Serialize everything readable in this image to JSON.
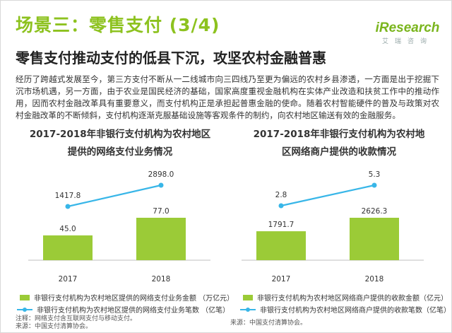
{
  "header": {
    "title": "场景三：零售支付 (3/4)",
    "subtitle": "零售支付推动支付的低县下沉，攻坚农村金融普惠"
  },
  "logo": {
    "main": "iResearch",
    "sub": "艾瑞咨询"
  },
  "paragraph": "经历了跨越式发展至今，第三方支付不断从一二线城市向三四线乃至更为偏远的农村乡县渗透，一方面是出于挖掘下沉市场机遇，另一方面，由于农业是国民经济的基础，国家高度重视金融机构在实体产业改造和扶贫工作中的推动作用，因而农村金融改革具有重要意义，而支付机构正是承担起普惠金融的使命。随着农村智能硬件的普及与政策对农村金融改革的不断倾斜，支付机构逐渐克服基础设施等客观条件的制约，向农村地区输送有效的金融服务。",
  "colors": {
    "title_green": "#8dc21f",
    "bar_green": "#9bcb37",
    "line_blue": "#38b6e8"
  },
  "chart_data": [
    {
      "type": "bar",
      "title_line1": "2017-2018年非银行支付机构为农村地区",
      "title_line2": "提供的网络支付业务情况",
      "categories": [
        "2017",
        "2018"
      ],
      "series": [
        {
          "name": "非银行支付机构为农村地区提供的网络支付业务金额 （万亿元）",
          "type": "bar",
          "values": [
            45.0,
            77.0
          ],
          "labels": [
            "45.0",
            "77.0"
          ]
        },
        {
          "name": "非银行支付机构为农村地区提供的网络支付业务笔数 （亿笔）",
          "type": "line",
          "values": [
            1417.8,
            2898.0
          ],
          "labels": [
            "1417.8",
            "2898.0"
          ]
        }
      ],
      "note_line1": "注释：网络支付含互联网支付与移动支付。",
      "note_line2": "来源：中国支付清算协会。"
    },
    {
      "type": "bar",
      "title_line1": "2017-2018年非银行支付机构为农村地",
      "title_line2": "区网络商户提供的收款情况",
      "categories": [
        "2017",
        "2018"
      ],
      "series": [
        {
          "name": "非银行支付机构为农村地区网络商户提供的收款金额（亿元）",
          "type": "bar",
          "values": [
            1791.7,
            2626.3
          ],
          "labels": [
            "1791.7",
            "2626.3"
          ]
        },
        {
          "name": "非银行支付机构为农村地区网络商户提供的收款笔数（亿笔）",
          "type": "line",
          "values": [
            2.8,
            5.3
          ],
          "labels": [
            "2.8",
            "5.3"
          ]
        }
      ],
      "note_line1": "来源：中国支付清算协会。"
    }
  ]
}
